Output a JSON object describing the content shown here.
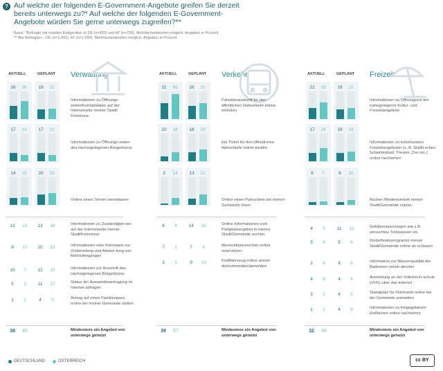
{
  "question": "Auf welche der folgenden E-Government-Angebote greifen Sie derzeit bereits unterwegs zu?* Auf welche der folgenden E-Government-Angebote würden Sie gerne unterwegs zugreifen?**",
  "question_icon": "?",
  "notes": [
    "Basis: *Befragte mit mobilen Endgeräten in DE (n=683) und AT (n=790), Mehrfachantworten möglich; Angaben in Prozent",
    "** Alle Befragten – DE (n=1.002), AT (n=1.000), Mehrfachantworten möglich; Angaben in Prozent"
  ],
  "column_headers": {
    "current": "AKTUELL",
    "planned": "GEPLANT"
  },
  "legend": {
    "de": "DEUTSCHLAND",
    "at": "ÖSTERREICH"
  },
  "license_badge": "cc BY",
  "colors": {
    "de": "#1e7f87",
    "at": "#62c6c3",
    "title": "#2a8a96"
  },
  "chart_data": {
    "type": "bar",
    "unit": "percent",
    "series": [
      {
        "name": "DEUTSCHLAND",
        "key": "de"
      },
      {
        "name": "ÖSTERREICH",
        "key": "at"
      }
    ],
    "sections": [
      {
        "title": "Verwaltung",
        "icon": "institution-icon",
        "bars": [
          {
            "label": "Informationen zu Öffnungs-zeiten/Kontaktdaten auf der Internetseite meiner Stadt/ Kommune",
            "current": {
              "de": 26,
              "at": 36
            },
            "planned": {
              "de": 19,
              "at": 21
            }
          },
          {
            "label": "Informationen zu Öffnungs-zeiten des nächstgelegenen Bürgerbüros",
            "current": {
              "de": 17,
              "at": 12
            },
            "planned": {
              "de": 17,
              "at": 12
            }
          },
          {
            "label": "Online einen Termin vereinbaren",
            "current": {
              "de": 14,
              "at": 15
            },
            "planned": {
              "de": 20,
              "at": 23
            }
          }
        ],
        "rows": [
          {
            "label": "Informationen zu Zuständigkei-ten auf der Internetseite meiner Stadt/Kommune",
            "current": {
              "de": 13,
              "at": 23
            },
            "planned": {
              "de": 13,
              "at": 16
            }
          },
          {
            "label": "Informationen oder Formulare zur Vorbereitung und Abwick-lung von Behördengängen",
            "current": {
              "de": 8,
              "at": 17
            },
            "planned": {
              "de": 10,
              "at": 15
            }
          },
          {
            "label": "Informationen zur Anschrift des nächstgelegenen Bürgerbüros",
            "current": {
              "de": 10,
              "at": 7
            },
            "planned": {
              "de": 12,
              "at": 10
            }
          },
          {
            "label": "Status der Ausweisbeantragung im Internet abfragen",
            "current": {
              "de": 5,
              "at": 3
            },
            "planned": {
              "de": 11,
              "at": 17
            }
          },
          {
            "label": "Antrag auf einen Familienpass online bei meiner Gemeinde stellen",
            "current": {
              "de": 1,
              "at": 2
            },
            "planned": {
              "de": 4,
              "at": 5
            }
          }
        ]
      },
      {
        "title": "Verkehr",
        "icon": "bus-icon",
        "bars": [
          {
            "label": "Fahrplanauskunft für den öffentlichen Nahverkehr online einholen",
            "current": {
              "de": 31,
              "at": 49
            },
            "planned": {
              "de": 26,
              "at": 31
            }
          },
          {
            "label": "Ein Ticket für den öffentlichen Nahverkehr online kaufen",
            "current": {
              "de": 10,
              "at": 18
            },
            "planned": {
              "de": 18,
              "at": 23
            }
          },
          {
            "label": "Online einen Parkschein bei meiner Gemeinde lösen",
            "current": {
              "de": 3,
              "at": 14
            },
            "planned": {
              "de": 13,
              "at": 21
            }
          }
        ],
        "rows": [
          {
            "label": "Online Informationen zum Parkplatzangebot in meiner Stadt/Gemeinde suchen",
            "current": {
              "de": 6,
              "at": 9
            },
            "planned": {
              "de": 14,
              "at": 16
            }
          },
          {
            "label": "Wunschkennzeichen online reservieren",
            "current": {
              "de": 7,
              "at": 1
            },
            "planned": {
              "de": 7,
              "at": 4
            }
          },
          {
            "label": "Kraftfahrzeug online anmel-den/ummelden/abmelden",
            "current": {
              "de": 3,
              "at": 1
            },
            "planned": {
              "de": 9,
              "at": 13
            }
          }
        ]
      },
      {
        "title": "Freizeit",
        "icon": "beach-umbrella-icon",
        "bars": [
          {
            "label": "Informationen zu Öffnungszei-ten nahegelegener Kultur- und Freizeitangebote",
            "current": {
              "de": 22,
              "at": 33
            },
            "planned": {
              "de": 19,
              "at": 22
            }
          },
          {
            "label": "Informationen zu kommunalen Freizeitangeboten (z. B. Städti-sches Schwimmbad, Theater, Zoo etc.) online nachsehen",
            "current": {
              "de": 17,
              "at": 26
            },
            "planned": {
              "de": 16,
              "at": 19
            }
          },
          {
            "label": "Bücher-/Medienverleih meiner Stadt/Gemeinde nutzen",
            "current": {
              "de": 6,
              "at": 7
            },
            "planned": {
              "de": 6,
              "at": 10
            }
          }
        ],
        "rows": [
          {
            "label": "Gefahrenwarnungen wie z.B. versuchtes Trinkwasser etc.",
            "current": {
              "de": 4,
              "at": 5
            },
            "planned": {
              "de": 11,
              "at": 12
            }
          },
          {
            "label": "Kinderferienprogramm meiner Stadt/Gemeinde online an-schauen",
            "current": {
              "de": 5,
              "at": 6
            },
            "planned": {
              "de": 5,
              "at": 6
            }
          },
          {
            "label": "Information zur Wasserqualität der Badeseen online abrufen",
            "current": {
              "de": 2,
              "at": 4
            },
            "planned": {
              "de": 8,
              "at": 9
            }
          },
          {
            "label": "Anmeldung an der Volkshoch-schule (VHS) über das Internet",
            "current": {
              "de": 4,
              "at": 5
            },
            "planned": {
              "de": 4,
              "at": 6
            }
          },
          {
            "label": "Standplatz für Flohmarkt online bei der Gemeinde anmelden",
            "current": {
              "de": 3,
              "at": 2
            },
            "planned": {
              "de": 4,
              "at": 5
            }
          },
          {
            "label": "Informationen zu freigegebenen Eisflächen online nachsehen",
            "current": {
              "de": 1,
              "at": 3
            },
            "planned": {
              "de": 4,
              "at": 6
            }
          }
        ]
      }
    ],
    "summary": [
      {
        "section": "Verwaltung",
        "de": 38,
        "at": 49,
        "label": "Mindestens ein Angebot von unterwegs genutzt"
      },
      {
        "section": "Verkehr",
        "de": 39,
        "at": 57,
        "label": "Mindestens ein Angebot von unterwegs genutzt"
      },
      {
        "section": "Freizeit",
        "de": 32,
        "at": 46,
        "label": "Mindestens ein Angebot von unterwegs genutzt"
      }
    ]
  }
}
